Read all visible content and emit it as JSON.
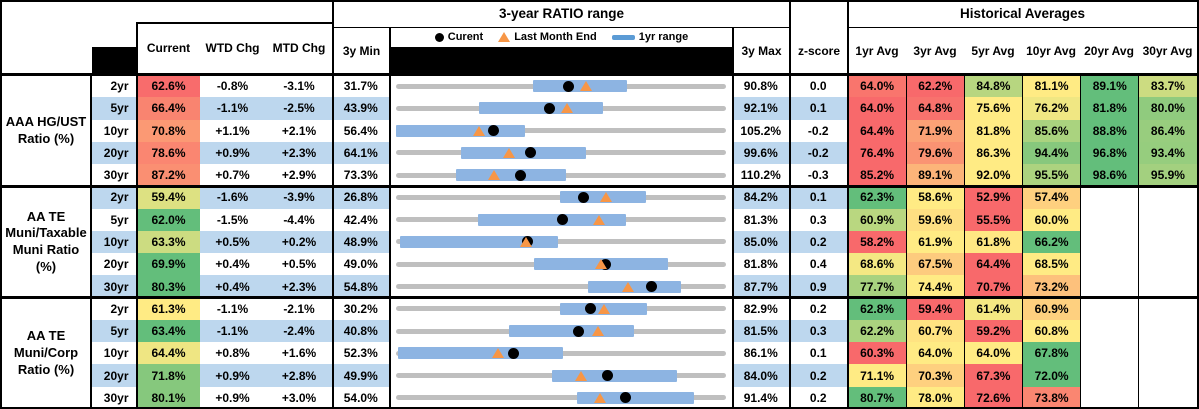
{
  "colors": {
    "stripe_blue": "#BDD7EE",
    "scale_min_color": "#F8696B",
    "scale_mid_color": "#FFEB84",
    "scale_max_color": "#63BE7B",
    "range_bar": "#8DB4E2",
    "track_gray": "#BFBFBF",
    "current_dot": "#000000",
    "last_month_triangle": "#F79646",
    "legend_bar": "#5B9BD5",
    "header_mask": "#000000"
  },
  "header": {
    "chart_section_title": "3-year RATIO range",
    "averages_section_title": "Historical Averages",
    "columns": {
      "current": "Current",
      "wtd": "WTD Chg",
      "mtd": "MTD Chg",
      "min": "3y Min",
      "max": "3y Max",
      "zscore": "z-score"
    },
    "avg_columns": [
      "1yr Avg",
      "3yr Avg",
      "5yr Avg",
      "10yr Avg",
      "20yr Avg",
      "30yr Avg"
    ]
  },
  "chart_data": {
    "type": "range-dot-table",
    "title": "3-year RATIO range",
    "value_unit": "%",
    "legend": [
      {
        "marker": "dot",
        "label": "Curent"
      },
      {
        "marker": "triangle",
        "label": "Last Month End"
      },
      {
        "marker": "bar",
        "label": "1yr range"
      }
    ],
    "groups": [
      {
        "label_lines": [
          "AAA HG/UST",
          "Ratio (%)"
        ],
        "rows": [
          {
            "tenor": "2yr",
            "current": 62.6,
            "wtd": "-0.8%",
            "mtd": "-3.1%",
            "min": 31.7,
            "max": 90.8,
            "zscore": "0.0",
            "bar": [
              56.3,
              73.2
            ],
            "last_month_end": 65.7,
            "avgs": [
              64.0,
              62.2,
              84.8,
              81.1,
              89.1,
              83.7
            ]
          },
          {
            "tenor": "5yr",
            "current": 66.4,
            "wtd": "-1.1%",
            "mtd": "-2.5%",
            "min": 43.9,
            "max": 92.1,
            "zscore": "0.1",
            "bar": [
              56.1,
              74.2
            ],
            "last_month_end": 68.9,
            "avgs": [
              64.0,
              64.8,
              75.6,
              76.2,
              81.8,
              80.0
            ]
          },
          {
            "tenor": "10yr",
            "current": 70.8,
            "wtd": "+1.1%",
            "mtd": "+2.1%",
            "min": 56.4,
            "max": 105.2,
            "zscore": "-0.2",
            "bar": [
              56.4,
              75.5
            ],
            "last_month_end": 68.7,
            "avgs": [
              64.4,
              71.9,
              81.8,
              85.6,
              88.8,
              86.4
            ]
          },
          {
            "tenor": "20yr",
            "current": 78.6,
            "wtd": "+0.9%",
            "mtd": "+2.3%",
            "min": 64.1,
            "max": 99.6,
            "zscore": "-0.2",
            "bar": [
              71.1,
              84.6
            ],
            "last_month_end": 76.3,
            "avgs": [
              76.4,
              79.6,
              86.3,
              94.4,
              96.8,
              93.4
            ]
          },
          {
            "tenor": "30yr",
            "current": 87.2,
            "wtd": "+0.7%",
            "mtd": "+2.9%",
            "min": 73.3,
            "max": 110.2,
            "zscore": "-0.3",
            "bar": [
              80.0,
              92.3
            ],
            "last_month_end": 84.3,
            "avgs": [
              85.2,
              89.1,
              92.0,
              95.5,
              98.6,
              95.9
            ]
          }
        ]
      },
      {
        "label_lines": [
          "AA TE",
          "Muni/Taxable",
          "Muni Ratio",
          "(%)"
        ],
        "rows": [
          {
            "tenor": "2yr",
            "current": 59.4,
            "wtd": "-1.6%",
            "mtd": "-3.9%",
            "min": 26.8,
            "max": 84.2,
            "zscore": "0.1",
            "bar": [
              55.3,
              70.4
            ],
            "last_month_end": 63.3,
            "avgs": [
              62.3,
              58.6,
              52.9,
              57.4,
              null,
              null
            ]
          },
          {
            "tenor": "5yr",
            "current": 62.0,
            "wtd": "-1.5%",
            "mtd": "-4.4%",
            "min": 42.4,
            "max": 81.3,
            "zscore": "0.3",
            "bar": [
              52.1,
              69.5
            ],
            "last_month_end": 66.4,
            "avgs": [
              60.9,
              59.6,
              55.5,
              60.0,
              null,
              null
            ]
          },
          {
            "tenor": "10yr",
            "current": 63.3,
            "wtd": "+0.5%",
            "mtd": "+0.2%",
            "min": 48.9,
            "max": 85.0,
            "zscore": "0.2",
            "bar": [
              49.3,
              66.6
            ],
            "last_month_end": 63.1,
            "avgs": [
              58.2,
              61.9,
              61.8,
              66.2,
              null,
              null
            ]
          },
          {
            "tenor": "20yr",
            "current": 69.9,
            "wtd": "+0.4%",
            "mtd": "+0.5%",
            "min": 49.0,
            "max": 81.8,
            "zscore": "0.4",
            "bar": [
              62.7,
              76.1
            ],
            "last_month_end": 69.4,
            "avgs": [
              68.6,
              67.5,
              64.4,
              68.5,
              null,
              null
            ]
          },
          {
            "tenor": "30yr",
            "current": 80.3,
            "wtd": "+0.4%",
            "mtd": "+2.3%",
            "min": 54.8,
            "max": 87.7,
            "zscore": "0.9",
            "bar": [
              74.0,
              83.3
            ],
            "last_month_end": 78.0,
            "avgs": [
              77.7,
              74.4,
              70.7,
              73.2,
              null,
              null
            ]
          }
        ]
      },
      {
        "label_lines": [
          "AA TE",
          "Muni/Corp",
          "Ratio (%)"
        ],
        "rows": [
          {
            "tenor": "2yr",
            "current": 61.3,
            "wtd": "-1.1%",
            "mtd": "-2.1%",
            "min": 30.2,
            "max": 82.9,
            "zscore": "0.2",
            "bar": [
              56.4,
              70.4
            ],
            "last_month_end": 63.4,
            "avgs": [
              62.8,
              59.4,
              61.4,
              60.9,
              null,
              null
            ]
          },
          {
            "tenor": "5yr",
            "current": 63.4,
            "wtd": "-1.1%",
            "mtd": "-2.4%",
            "min": 40.8,
            "max": 81.5,
            "zscore": "0.3",
            "bar": [
              54.7,
              70.2
            ],
            "last_month_end": 65.8,
            "avgs": [
              62.2,
              60.7,
              59.2,
              60.8,
              null,
              null
            ]
          },
          {
            "tenor": "10yr",
            "current": 64.4,
            "wtd": "+0.8%",
            "mtd": "+1.6%",
            "min": 52.3,
            "max": 86.1,
            "zscore": "0.1",
            "bar": [
              52.5,
              69.4
            ],
            "last_month_end": 62.8,
            "avgs": [
              60.3,
              64.0,
              64.0,
              67.8,
              null,
              null
            ]
          },
          {
            "tenor": "20yr",
            "current": 71.8,
            "wtd": "+0.9%",
            "mtd": "+2.8%",
            "min": 49.9,
            "max": 84.0,
            "zscore": "0.2",
            "bar": [
              66.0,
              79.0
            ],
            "last_month_end": 69.0,
            "avgs": [
              71.1,
              70.3,
              67.3,
              72.0,
              null,
              null
            ]
          },
          {
            "tenor": "30yr",
            "current": 80.1,
            "wtd": "+0.9%",
            "mtd": "+3.0%",
            "min": 54.0,
            "max": 91.4,
            "zscore": "0.2",
            "bar": [
              74.5,
              87.8
            ],
            "last_month_end": 77.1,
            "avgs": [
              80.7,
              78.0,
              72.6,
              73.8,
              null,
              null
            ]
          }
        ]
      }
    ]
  }
}
